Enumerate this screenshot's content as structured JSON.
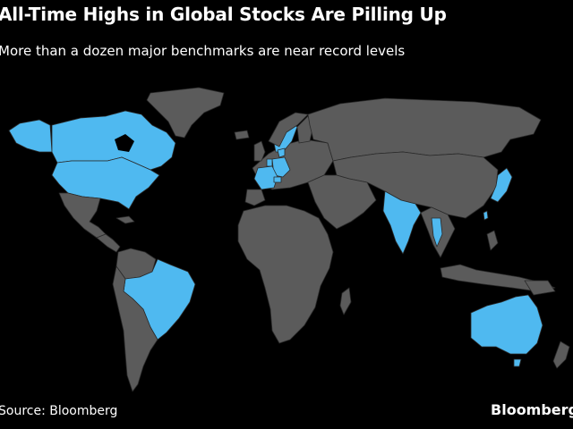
{
  "title": "All-Time Highs in Global Stocks Are Pilling Up",
  "subtitle": "More than a dozen major benchmarks are near record levels",
  "source": "Source: Bloomberg",
  "brand": "Bloomberg",
  "colors": {
    "background": "#000000",
    "land": "#5b5b5b",
    "highlight": "#4fb9f0",
    "border": "#2a2a2a"
  },
  "highlighted_countries": [
    "Canada",
    "United States",
    "Brazil",
    "France",
    "Germany",
    "Switzerland",
    "Netherlands",
    "Denmark",
    "Sweden",
    "India",
    "Thailand",
    "Taiwan",
    "Japan",
    "Australia"
  ]
}
